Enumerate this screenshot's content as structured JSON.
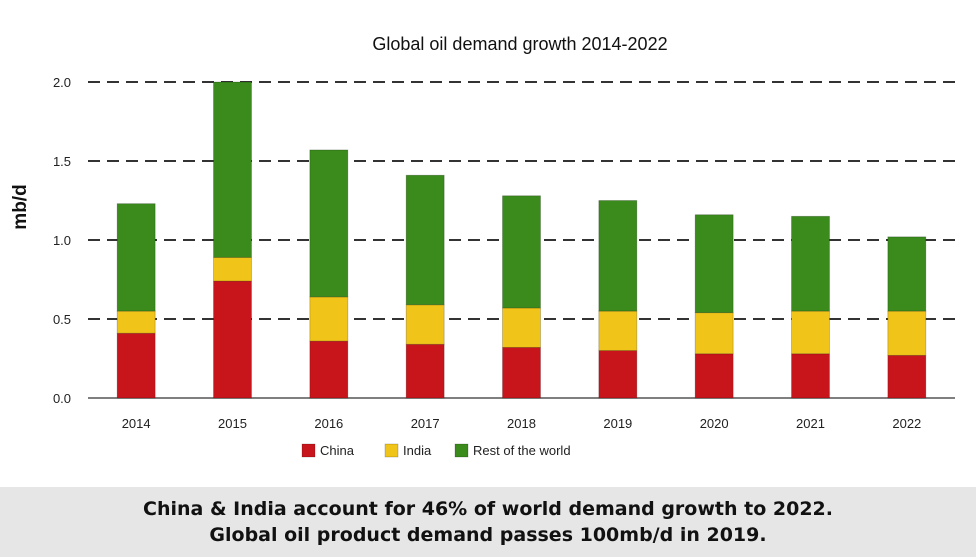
{
  "chart_data": {
    "type": "bar",
    "stacked": true,
    "title": "Global oil demand growth 2014-2022",
    "ylabel": "mb/d",
    "xlabel": "",
    "ylim": [
      0,
      2.0
    ],
    "yticks": [
      "0.0",
      "0.5",
      "1.0",
      "1.5",
      "2.0"
    ],
    "grid": "dashed horizontal",
    "legend_position": "bottom",
    "categories": [
      "2014",
      "2015",
      "2016",
      "2017",
      "2018",
      "2019",
      "2020",
      "2021",
      "2022"
    ],
    "series": [
      {
        "name": "China",
        "color": "#c8151b",
        "values": [
          0.41,
          0.74,
          0.36,
          0.34,
          0.32,
          0.3,
          0.28,
          0.28,
          0.27
        ]
      },
      {
        "name": "India",
        "color": "#f0c419",
        "values": [
          0.14,
          0.15,
          0.28,
          0.25,
          0.25,
          0.25,
          0.26,
          0.27,
          0.28
        ]
      },
      {
        "name": "Rest of the world",
        "color": "#3a8a1c",
        "values": [
          0.68,
          1.11,
          0.93,
          0.82,
          0.71,
          0.7,
          0.62,
          0.6,
          0.47
        ]
      }
    ]
  },
  "caption": {
    "line1": "China & India account for 46% of world demand growth to 2022.",
    "line2": "Global oil product demand passes 100mb/d in 2019."
  }
}
